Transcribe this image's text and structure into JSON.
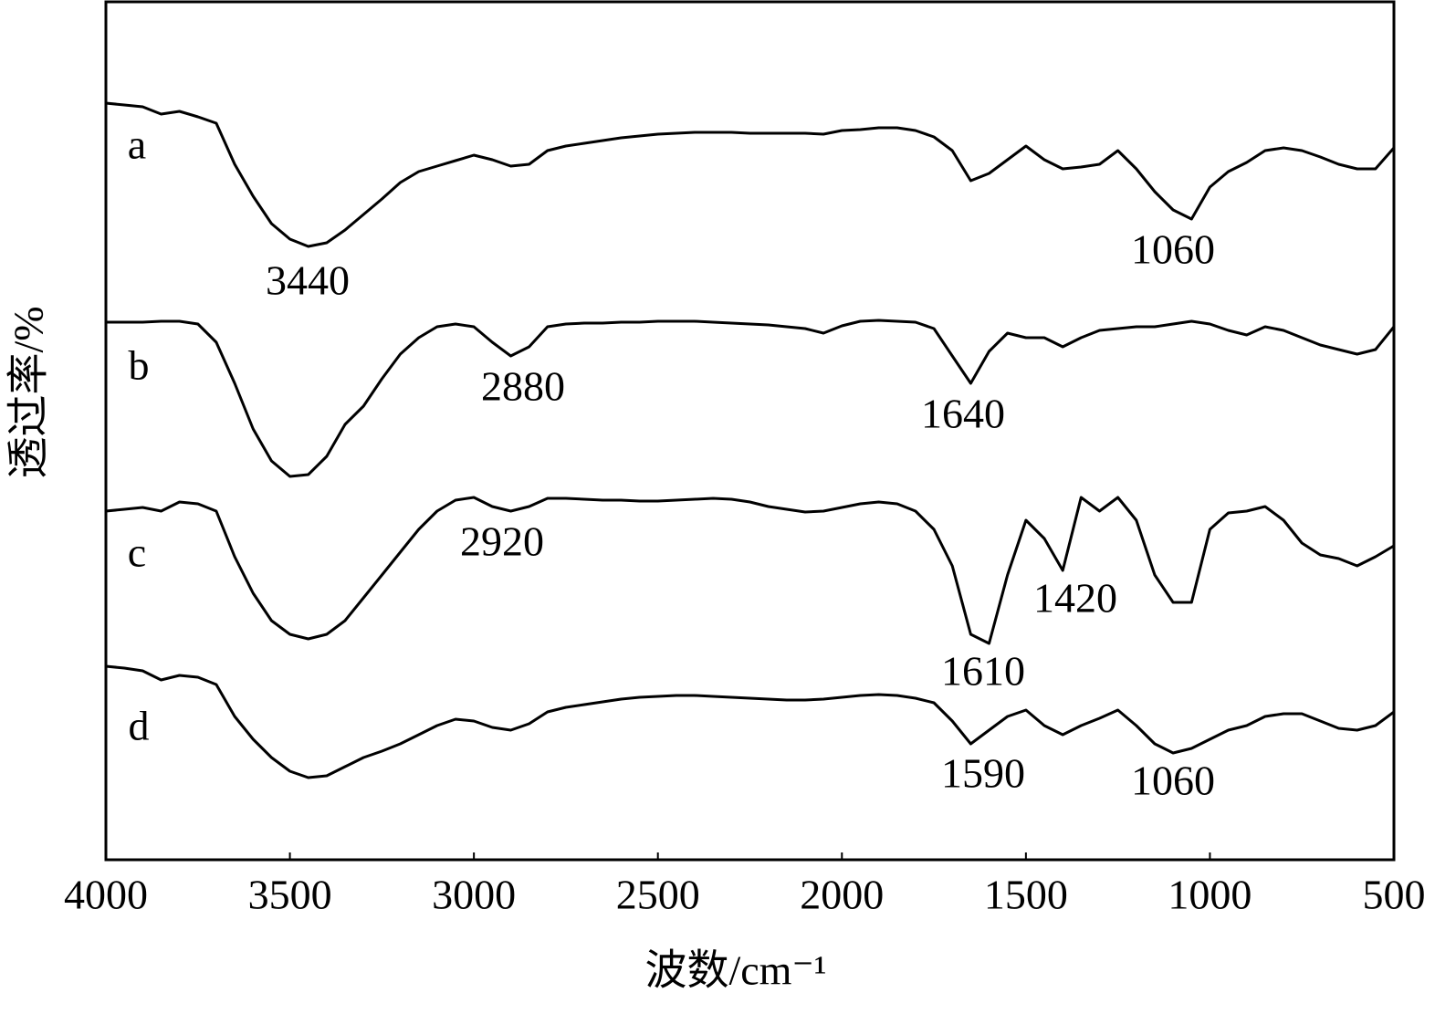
{
  "chart_data": {
    "type": "line",
    "xlabel": "波数/cm⁻¹",
    "ylabel": "透过率/%",
    "xlim": [
      4000,
      500
    ],
    "ylim": [
      0,
      94
    ],
    "xticks": [
      4000,
      3500,
      3000,
      2500,
      2000,
      1500,
      1000,
      500
    ],
    "x": [
      4000,
      3950,
      3900,
      3850,
      3800,
      3750,
      3700,
      3650,
      3600,
      3550,
      3500,
      3450,
      3400,
      3350,
      3300,
      3250,
      3200,
      3150,
      3100,
      3050,
      3000,
      2950,
      2900,
      2850,
      2800,
      2750,
      2700,
      2650,
      2600,
      2550,
      2500,
      2450,
      2400,
      2350,
      2300,
      2250,
      2200,
      2150,
      2100,
      2050,
      2000,
      1950,
      1900,
      1850,
      1800,
      1750,
      1700,
      1650,
      1600,
      1550,
      1500,
      1450,
      1400,
      1350,
      1300,
      1250,
      1200,
      1150,
      1100,
      1050,
      1000,
      950,
      900,
      850,
      800,
      750,
      700,
      650,
      600,
      550,
      500
    ],
    "series": [
      {
        "name": "a",
        "color": "#000000",
        "values": [
          82.9,
          82.7,
          82.5,
          81.7,
          82.0,
          81.4,
          80.7,
          76.2,
          72.7,
          69.7,
          68.0,
          67.2,
          67.6,
          69.0,
          70.7,
          72.4,
          74.2,
          75.4,
          76.0,
          76.6,
          77.2,
          76.7,
          76.0,
          76.2,
          77.7,
          78.2,
          78.5,
          78.8,
          79.1,
          79.3,
          79.5,
          79.6,
          79.7,
          79.7,
          79.7,
          79.6,
          79.6,
          79.6,
          79.6,
          79.5,
          79.9,
          80.0,
          80.2,
          80.2,
          79.9,
          79.2,
          77.7,
          74.4,
          75.2,
          76.7,
          78.2,
          76.7,
          75.7,
          75.9,
          76.2,
          77.7,
          75.7,
          73.2,
          71.2,
          70.2,
          73.7,
          75.4,
          76.4,
          77.7,
          78.0,
          77.7,
          77.0,
          76.2,
          75.7,
          75.7,
          78.0
        ]
      },
      {
        "name": "b",
        "color": "#000000",
        "values": [
          58.9,
          58.9,
          58.9,
          59.0,
          59.0,
          58.7,
          56.7,
          52.2,
          47.2,
          43.7,
          42.0,
          42.2,
          44.2,
          47.7,
          49.7,
          52.7,
          55.4,
          57.2,
          58.4,
          58.7,
          58.4,
          56.7,
          55.2,
          56.2,
          58.4,
          58.7,
          58.8,
          58.8,
          58.9,
          58.9,
          59.0,
          59.0,
          59.0,
          58.9,
          58.8,
          58.7,
          58.6,
          58.4,
          58.2,
          57.7,
          58.5,
          59.0,
          59.1,
          59.0,
          58.9,
          58.2,
          55.2,
          52.2,
          55.7,
          57.7,
          57.2,
          57.2,
          56.2,
          57.2,
          58.0,
          58.2,
          58.4,
          58.4,
          58.7,
          59.0,
          58.7,
          58.0,
          57.5,
          58.4,
          58.0,
          57.2,
          56.4,
          55.9,
          55.4,
          55.9,
          58.4
        ]
      },
      {
        "name": "c",
        "color": "#000000",
        "values": [
          38.2,
          38.4,
          38.6,
          38.2,
          39.2,
          39.0,
          38.2,
          33.2,
          29.2,
          26.2,
          24.7,
          24.2,
          24.7,
          26.2,
          28.7,
          31.2,
          33.7,
          36.2,
          38.2,
          39.4,
          39.7,
          38.7,
          38.2,
          38.7,
          39.6,
          39.6,
          39.5,
          39.4,
          39.4,
          39.3,
          39.3,
          39.4,
          39.5,
          39.6,
          39.5,
          39.2,
          38.7,
          38.4,
          38.1,
          38.2,
          38.6,
          39.0,
          39.2,
          39.0,
          38.2,
          36.2,
          32.2,
          24.7,
          23.7,
          31.2,
          37.2,
          35.2,
          31.7,
          39.7,
          38.2,
          39.7,
          37.2,
          31.2,
          28.2,
          28.2,
          36.2,
          38.0,
          38.2,
          38.7,
          37.2,
          34.7,
          33.4,
          33.0,
          32.2,
          33.2,
          34.4
        ]
      },
      {
        "name": "d",
        "color": "#000000",
        "values": [
          21.2,
          21.0,
          20.7,
          19.7,
          20.2,
          20.0,
          19.2,
          15.7,
          13.2,
          11.2,
          9.7,
          9.0,
          9.2,
          10.2,
          11.2,
          11.9,
          12.7,
          13.7,
          14.7,
          15.4,
          15.2,
          14.5,
          14.2,
          14.9,
          16.2,
          16.7,
          17.0,
          17.3,
          17.6,
          17.8,
          17.9,
          18.0,
          18.0,
          17.9,
          17.8,
          17.7,
          17.6,
          17.5,
          17.5,
          17.6,
          17.8,
          18.0,
          18.1,
          18.0,
          17.7,
          17.2,
          15.2,
          12.7,
          14.2,
          15.7,
          16.4,
          14.7,
          13.7,
          14.7,
          15.5,
          16.4,
          14.7,
          12.7,
          11.7,
          12.2,
          13.2,
          14.2,
          14.7,
          15.7,
          16.0,
          16.0,
          15.2,
          14.4,
          14.2,
          14.7,
          16.2
        ]
      }
    ],
    "annotations": [
      "3440",
      "1060",
      "2880",
      "1640",
      "2920",
      "1420",
      "1610",
      "1590",
      "1060"
    ]
  }
}
